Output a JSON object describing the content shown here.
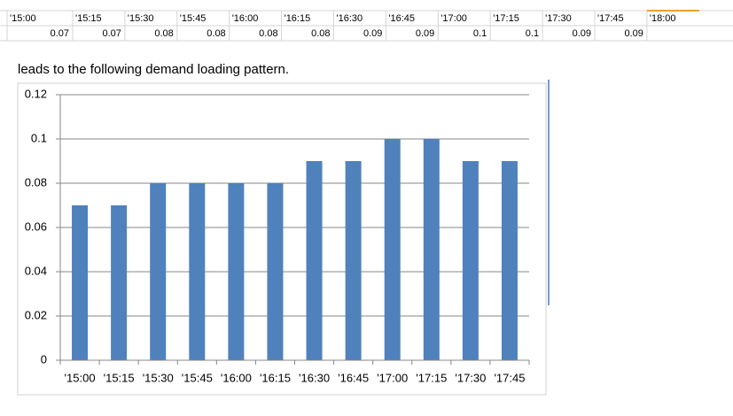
{
  "table": {
    "header": [
      "'15:00",
      "'15:15",
      "'15:30",
      "'15:45",
      "'16:00",
      "'16:15",
      "'16:30",
      "'16:45",
      "'17:00",
      "'17:15",
      "'17:30",
      "'17:45",
      "'18:00"
    ],
    "values": [
      0.07,
      0.07,
      0.08,
      0.08,
      0.08,
      0.08,
      0.09,
      0.09,
      0.1,
      0.1,
      0.09,
      0.09,
      null
    ]
  },
  "text": "leads to the following demand loading pattern.",
  "chart_data": {
    "type": "bar",
    "categories": [
      "'15:00",
      "'15:15",
      "'15:30",
      "'15:45",
      "'16:00",
      "'16:15",
      "'16:30",
      "'16:45",
      "'17:00",
      "'17:15",
      "'17:30",
      "'17:45"
    ],
    "values": [
      0.07,
      0.07,
      0.08,
      0.08,
      0.08,
      0.08,
      0.09,
      0.09,
      0.1,
      0.1,
      0.09,
      0.09
    ],
    "color": "#4f81bd",
    "ylim": [
      0,
      0.12
    ],
    "yticks": [
      0,
      0.02,
      0.04,
      0.06,
      0.08,
      0.1,
      0.12
    ],
    "grid": true
  }
}
